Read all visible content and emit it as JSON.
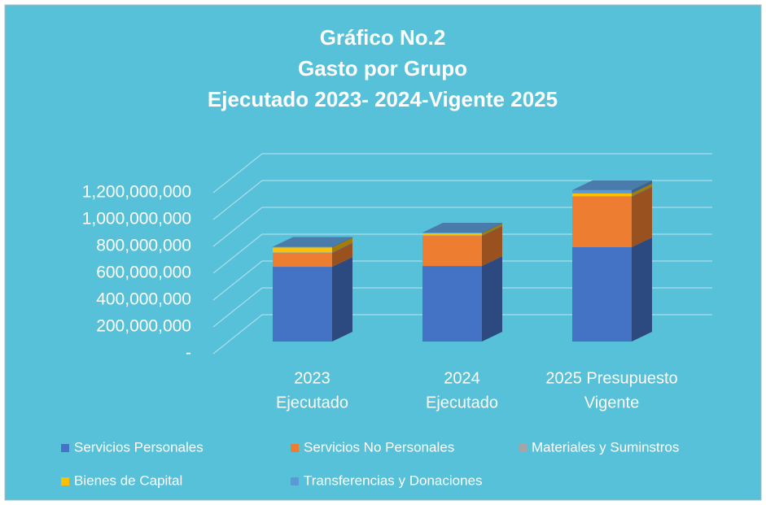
{
  "chart_data": {
    "type": "bar3d_stacked",
    "title": [
      "Gráfico No.2",
      "Gasto por Grupo",
      "Ejecutado 2023- 2024-Vigente 2025"
    ],
    "categories": [
      [
        "2023",
        "Ejecutado"
      ],
      [
        "2024",
        "Ejecutado"
      ],
      [
        "2025 Presupuesto",
        "Vigente"
      ]
    ],
    "series": [
      {
        "name": "Servicios Personales",
        "color": "#4472c4",
        "values": [
          557000000,
          563000000,
          703000000
        ]
      },
      {
        "name": "Servicios No Personales",
        "color": "#ed7d31",
        "values": [
          103000000,
          224000000,
          376000000
        ]
      },
      {
        "name": "Materiales y Suminstros",
        "color": "#a5a5a5",
        "values": [
          5000000,
          5000000,
          5000000
        ]
      },
      {
        "name": "Bienes de Capital",
        "color": "#ffc000",
        "values": [
          36000000,
          15000000,
          20000000
        ]
      },
      {
        "name": "Transferencias y Donaciones",
        "color": "#5b9bd5",
        "values": [
          5000000,
          5000000,
          25000000
        ]
      }
    ],
    "ylim": [
      0,
      1200000000
    ],
    "yticks": [
      {
        "value": 0,
        "label": "-"
      },
      {
        "value": 200000000,
        "label": "200,000,000"
      },
      {
        "value": 400000000,
        "label": "400,000,000"
      },
      {
        "value": 600000000,
        "label": "600,000,000"
      },
      {
        "value": 800000000,
        "label": "800,000,000"
      },
      {
        "value": 1000000000,
        "label": "1,000,000,000"
      },
      {
        "value": 1200000000,
        "label": "1,200,000,000"
      }
    ],
    "grid": true
  }
}
